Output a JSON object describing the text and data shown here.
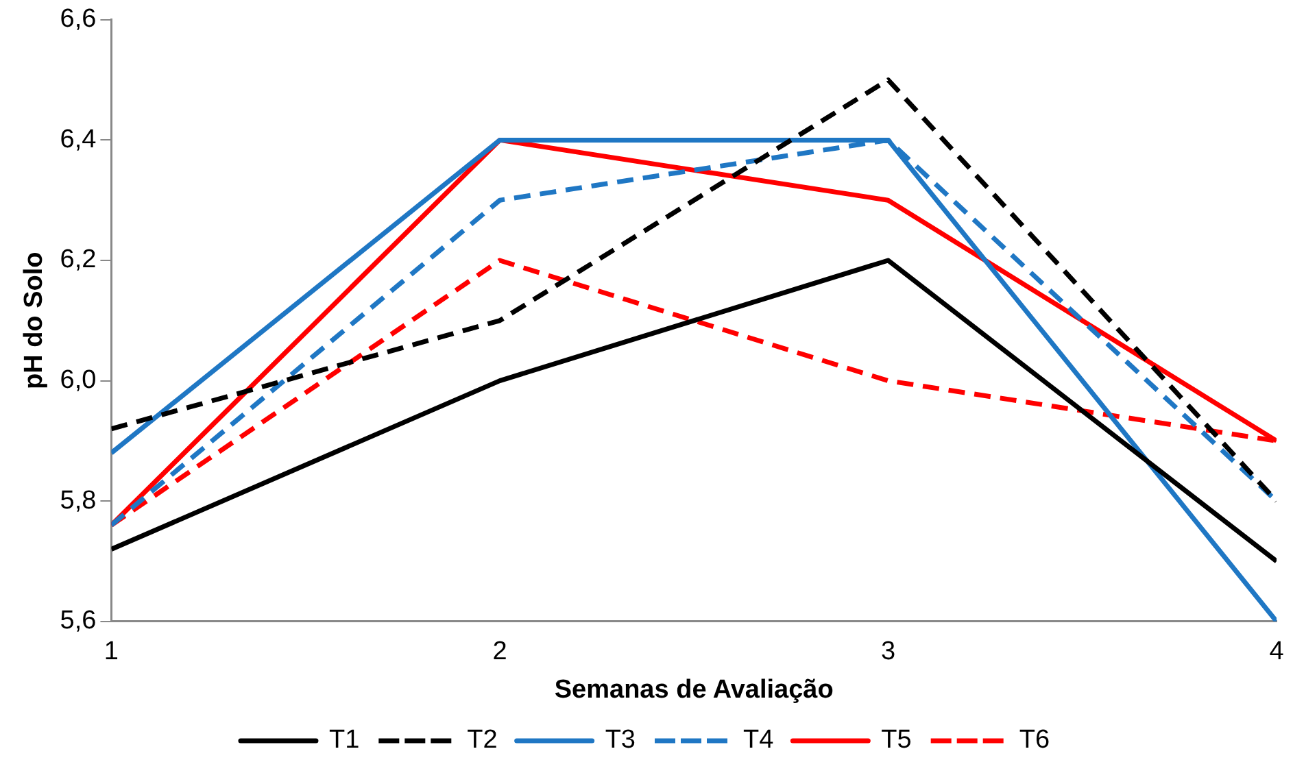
{
  "chart_data": {
    "type": "line",
    "xlabel": "Semanas de Avaliação",
    "ylabel": "pH do Solo",
    "x": [
      1,
      2,
      3,
      4
    ],
    "xlim": [
      1,
      4
    ],
    "xticks": [
      1,
      2,
      3,
      4
    ],
    "ylim": [
      5.6,
      6.6
    ],
    "yticks": [
      {
        "value": 5.6,
        "label": "5,6"
      },
      {
        "value": 5.8,
        "label": "5,8"
      },
      {
        "value": 6.0,
        "label": "6,0"
      },
      {
        "value": 6.2,
        "label": "6,2"
      },
      {
        "value": 6.4,
        "label": "6,4"
      },
      {
        "value": 6.6,
        "label": "6,6"
      }
    ],
    "grid": false,
    "legend": "bottom",
    "marker": "none",
    "series": [
      {
        "name": "T1",
        "color": "#000000",
        "line_style": "solid",
        "values": [
          5.72,
          6.0,
          6.2,
          5.7
        ]
      },
      {
        "name": "T2",
        "color": "#000000",
        "line_style": "dashed",
        "values": [
          5.92,
          6.1,
          6.5,
          5.8
        ]
      },
      {
        "name": "T3",
        "color": "#1f77c4",
        "line_style": "solid",
        "values": [
          5.88,
          6.4,
          6.4,
          5.6
        ]
      },
      {
        "name": "T4",
        "color": "#1f77c4",
        "line_style": "dashed",
        "values": [
          5.76,
          6.3,
          6.4,
          5.8
        ]
      },
      {
        "name": "T5",
        "color": "#ff0000",
        "line_style": "solid",
        "values": [
          5.76,
          6.4,
          6.3,
          5.9
        ]
      },
      {
        "name": "T6",
        "color": "#ff0000",
        "line_style": "dashed",
        "values": [
          5.76,
          6.2,
          6.0,
          5.9
        ]
      }
    ]
  }
}
